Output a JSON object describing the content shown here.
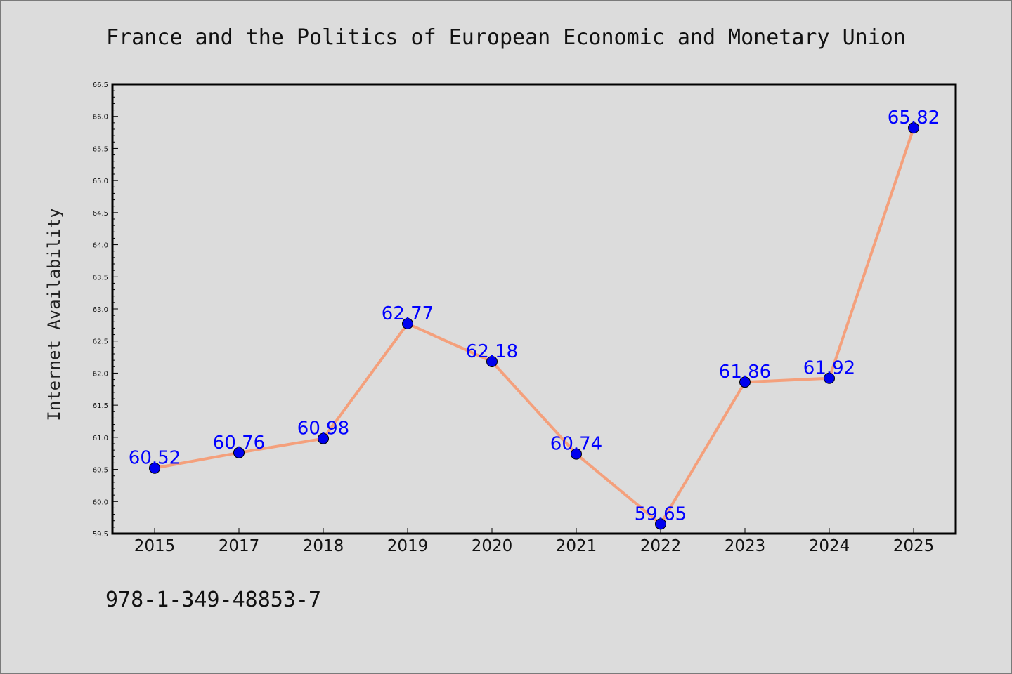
{
  "chart_data": {
    "type": "line",
    "title": "France and the Politics of European Economic and Monetary Union",
    "xlabel": "",
    "ylabel": "Internet Availability",
    "categories": [
      "2015",
      "2017",
      "2018",
      "2019",
      "2020",
      "2021",
      "2022",
      "2023",
      "2024",
      "2025"
    ],
    "series": [
      {
        "values": [
          60.52,
          60.76,
          60.98,
          62.77,
          62.18,
          60.74,
          59.65,
          61.86,
          61.92,
          65.82
        ],
        "line_color": "#f4a07c",
        "marker_color": "#0000ee"
      }
    ],
    "data_labels": [
      "60.52",
      "60.76",
      "60.98",
      "62.77",
      "62.18",
      "60.74",
      "59.65",
      "61.86",
      "61.92",
      "65.82"
    ],
    "ylim": [
      59.5,
      66.5
    ],
    "yticks": [
      "59.5",
      "60.0",
      "60.5",
      "61.0",
      "61.5",
      "62.0",
      "62.5",
      "63.0",
      "63.5",
      "64.0",
      "64.5",
      "65.0",
      "65.5",
      "66.0",
      "66.5"
    ],
    "grid": false,
    "label_color": "#0000ff"
  },
  "footer": {
    "isbn": "978-1-349-48853-7"
  }
}
